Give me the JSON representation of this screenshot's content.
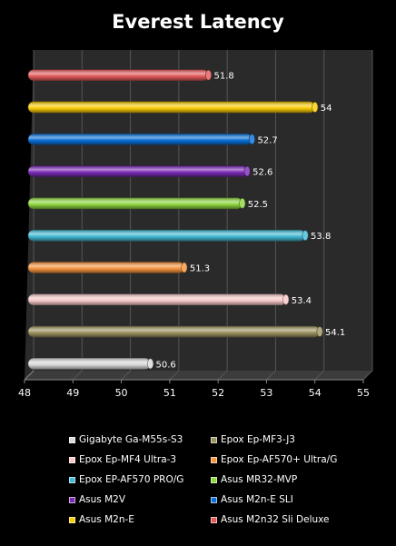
{
  "chart_data": {
    "type": "bar",
    "orientation": "horizontal",
    "title": "Everest Latency",
    "xlim": [
      48,
      55
    ],
    "x_ticks": [
      "48",
      "49",
      "50",
      "51",
      "52",
      "53",
      "54",
      "55"
    ],
    "grid": true,
    "legend_position": "bottom",
    "series": [
      {
        "name": "Gigabyte Ga-M55s-S3",
        "value": 50.6,
        "label": "50.6",
        "color": "#d9d9d9"
      },
      {
        "name": "Epox Ep-MF3-J3",
        "value": 54.1,
        "label": "54.1",
        "color": "#9b9260"
      },
      {
        "name": "Epox Ep-MF4 Ultra-3",
        "value": 53.4,
        "label": "53.4",
        "color": "#f7c8c8"
      },
      {
        "name": "Epox Ep-AF570+ Ultra/G",
        "value": 51.3,
        "label": "51.3",
        "color": "#f4943f"
      },
      {
        "name": "Epox EP-AF570 PRO/G",
        "value": 53.8,
        "label": "53.8",
        "color": "#43b9d4"
      },
      {
        "name": "Asus MR32-MVP",
        "value": 52.5,
        "label": "52.5",
        "color": "#8ed540"
      },
      {
        "name": "Asus M2V",
        "value": 52.6,
        "label": "52.6",
        "color": "#7a2bb5"
      },
      {
        "name": "Asus M2n-E SLI",
        "value": 52.7,
        "label": "52.7",
        "color": "#0a6fd6"
      },
      {
        "name": "Asus M2n-E",
        "value": 54,
        "label": "54",
        "color": "#f8cb06"
      },
      {
        "name": "Asus M2n32 Sli Deluxe",
        "value": 51.8,
        "label": "51.8",
        "color": "#e25b5b"
      }
    ]
  }
}
